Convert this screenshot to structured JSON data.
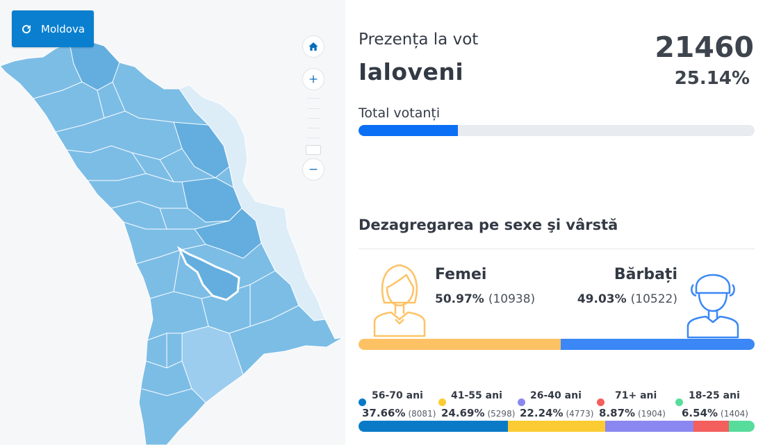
{
  "map": {
    "country_button_label": "Moldova",
    "colors": {
      "region_fill": "#7cbde6",
      "region_dark": "#64aedf",
      "region_light": "#9ccdef",
      "transnistria": "#dcedf8",
      "selected_border": "#ffffff"
    }
  },
  "turnout": {
    "title": "Prezența la vot",
    "region": "Ialoveni",
    "count": "21460",
    "percent": "25.14%",
    "total_label": "Total votanți",
    "progress": 0.2514
  },
  "breakdown": {
    "title": "Dezagregarea pe sexe şi vârstă",
    "female": {
      "label": "Femei",
      "percent": "50.97%",
      "count": "(10938)",
      "share": 50.97,
      "color": "#fec265"
    },
    "male": {
      "label": "Bărbați",
      "percent": "49.03%",
      "count": "(10522)",
      "share": 49.03,
      "color": "#3a87f5"
    }
  },
  "ages": [
    {
      "label": "56-70 ani",
      "percent": "37.66%",
      "count": "(8081)",
      "share": 37.66,
      "color": "#0a7ac7"
    },
    {
      "label": "41-55 ani",
      "percent": "24.69%",
      "count": "(5298)",
      "share": 24.69,
      "color": "#fccb33"
    },
    {
      "label": "26-40 ani",
      "percent": "22.24%",
      "count": "(4773)",
      "share": 22.24,
      "color": "#8b87f0"
    },
    {
      "label": "71+ ani",
      "percent": "8.87%",
      "count": "(1904)",
      "share": 8.87,
      "color": "#f25f5c"
    },
    {
      "label": "18-25 ani",
      "percent": "6.54%",
      "count": "(1404)",
      "share": 6.54,
      "color": "#57dc9c"
    }
  ],
  "icons": {
    "country_button": "refresh-icon",
    "zoom_home": "home-icon",
    "zoom_in": "plus-icon",
    "zoom_out": "minus-icon",
    "female": "woman-avatar-icon",
    "male": "man-avatar-icon"
  }
}
